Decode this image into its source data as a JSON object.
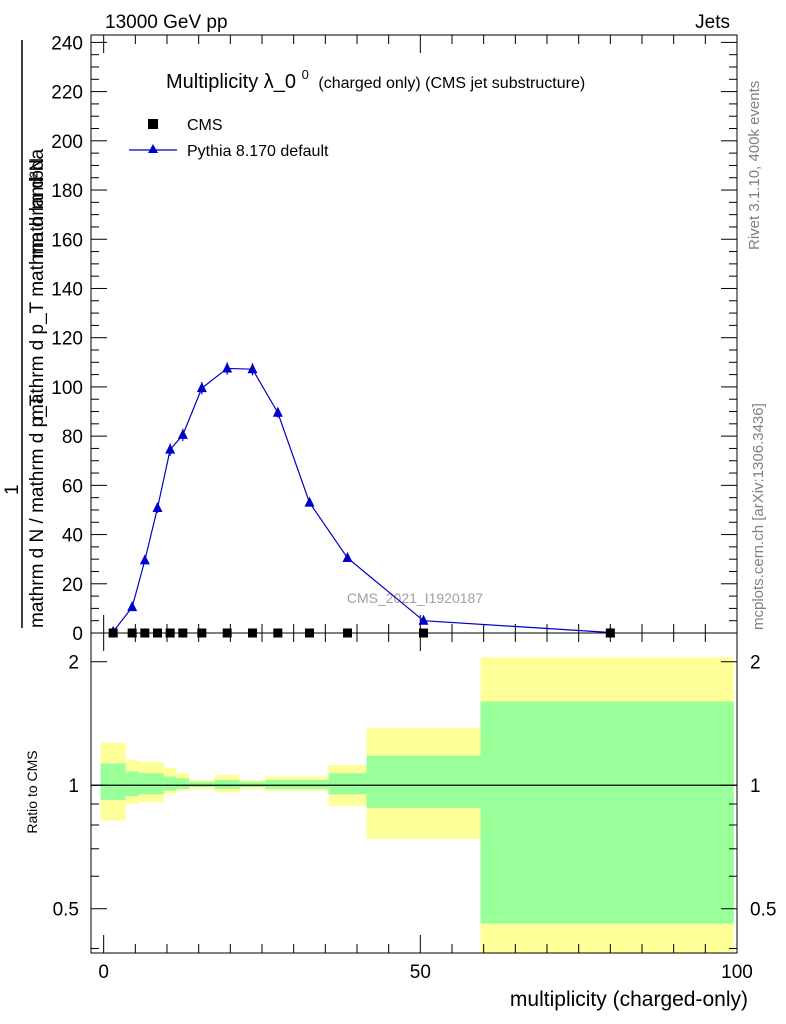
{
  "header": {
    "left": "13000 GeV pp",
    "right": "Jets"
  },
  "side": {
    "rivet": "Rivet 3.1.10,  400k events",
    "mcplots": "mcplots.cern.ch [arXiv:1306.3436]"
  },
  "chart_data": {
    "type": "scatter",
    "title_main": "Multiplicity λ_0",
    "title_sup": "0",
    "title_suffix": "(charged only) (CMS jet substructure)",
    "watermark": "CMS_2021_I1920187",
    "ylabel_numerator": "mathrm d²N",
    "ylabel_denominator": "mathrm d p_T mathrm d lambda",
    "ylabel_prefix_num": "1",
    "ylabel_prefix_den": "mathrm d N / mathrm d p_T",
    "xlabel": "multiplicity (charged-only)",
    "ratio_ylabel": "Ratio to CMS",
    "xlim": [
      -2,
      100
    ],
    "ylim": [
      0,
      243
    ],
    "yticks": [
      "0",
      "20",
      "40",
      "60",
      "80",
      "100",
      "120",
      "140",
      "160",
      "180",
      "200",
      "220",
      "240"
    ],
    "xticks": [
      "0",
      "50",
      "100"
    ],
    "ratio_yticks": [
      "0.5",
      "1",
      "2"
    ],
    "ratio_ylim": [
      0.39,
      2.35
    ],
    "ratio_scale": "log",
    "legend": [
      {
        "name": "CMS",
        "marker": "square",
        "color": "#000000"
      },
      {
        "name": "Pythia 8.170 default",
        "marker": "triangle",
        "color": "#0000cc"
      }
    ],
    "series": [
      {
        "name": "CMS",
        "x": [
          1.5,
          4.5,
          6.5,
          8.5,
          10.5,
          12.5,
          15.5,
          19.5,
          23.5,
          27.5,
          32.5,
          38.5,
          50.5,
          80
        ],
        "values": [
          0,
          0,
          0,
          0,
          0,
          0,
          0,
          0,
          0,
          0,
          0,
          0,
          0,
          0
        ]
      },
      {
        "name": "Pythia 8.170 default",
        "x": [
          1.5,
          4.5,
          6.5,
          8.5,
          10.5,
          12.5,
          15.5,
          19.5,
          23.5,
          27.5,
          32.5,
          38.5,
          50.5,
          80
        ],
        "values": [
          0.5,
          10.5,
          29.5,
          50.8,
          74.5,
          80.5,
          99.5,
          107.5,
          107.2,
          89.5,
          53,
          30.5,
          5,
          0.2
        ],
        "errors": [
          0.3,
          1.0,
          1.5,
          2.0,
          2.5,
          2.5,
          2.5,
          2.5,
          2.5,
          2.0,
          1.0,
          0.8,
          0.3,
          0.1
        ]
      }
    ],
    "ratio_bands": [
      {
        "x0": -0.5,
        "x1": 3.5,
        "y_lo": 0.82,
        "y_hi": 1.27,
        "g_lo": 0.92,
        "g_hi": 1.13
      },
      {
        "x0": 3.5,
        "x1": 5.5,
        "y_lo": 0.9,
        "y_hi": 1.15,
        "g_lo": 0.94,
        "g_hi": 1.08
      },
      {
        "x0": 5.5,
        "x1": 9.5,
        "y_lo": 0.91,
        "y_hi": 1.14,
        "g_lo": 0.95,
        "g_hi": 1.07
      },
      {
        "x0": 9.5,
        "x1": 11.5,
        "y_lo": 0.95,
        "y_hi": 1.1,
        "g_lo": 0.97,
        "g_hi": 1.05
      },
      {
        "x0": 11.5,
        "x1": 13.5,
        "y_lo": 0.97,
        "y_hi": 1.07,
        "g_lo": 0.98,
        "g_hi": 1.04
      },
      {
        "x0": 13.5,
        "x1": 17.5,
        "y_lo": 0.98,
        "y_hi": 1.03,
        "g_lo": 0.99,
        "g_hi": 1.02
      },
      {
        "x0": 17.5,
        "x1": 21.5,
        "y_lo": 0.96,
        "y_hi": 1.06,
        "g_lo": 0.98,
        "g_hi": 1.03
      },
      {
        "x0": 21.5,
        "x1": 25.5,
        "y_lo": 0.98,
        "y_hi": 1.03,
        "g_lo": 0.99,
        "g_hi": 1.02
      },
      {
        "x0": 25.5,
        "x1": 29.5,
        "y_lo": 0.97,
        "y_hi": 1.05,
        "g_lo": 0.98,
        "g_hi": 1.03
      },
      {
        "x0": 29.5,
        "x1": 35.5,
        "y_lo": 0.97,
        "y_hi": 1.05,
        "g_lo": 0.98,
        "g_hi": 1.03
      },
      {
        "x0": 35.5,
        "x1": 41.5,
        "y_lo": 0.89,
        "y_hi": 1.12,
        "g_lo": 0.95,
        "g_hi": 1.07
      },
      {
        "x0": 41.5,
        "x1": 59.5,
        "y_lo": 0.74,
        "y_hi": 1.38,
        "g_lo": 0.88,
        "g_hi": 1.18
      },
      {
        "x0": 59.5,
        "x1": 99.5,
        "y_lo": 0.39,
        "y_hi": 2.05,
        "g_lo": 0.46,
        "g_hi": 1.6
      }
    ]
  },
  "colors": {
    "mc": "#0000cc",
    "band_yellow": "#ffff99",
    "band_green": "#99ff99",
    "grey_text": "#808080"
  }
}
